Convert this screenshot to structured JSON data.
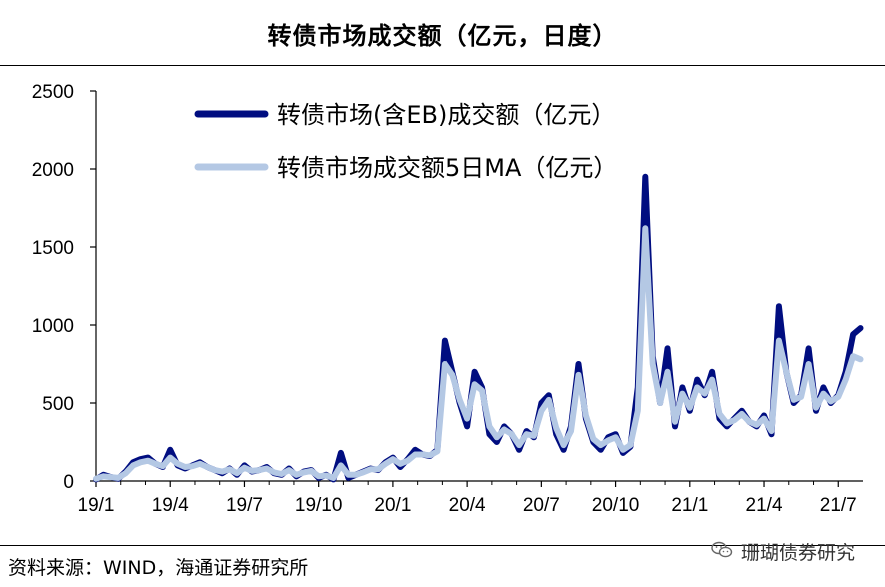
{
  "chart_data": {
    "type": "line",
    "title": "转债市场成交额（亿元，日度）",
    "ylim": [
      0,
      2500
    ],
    "yticks": [
      0,
      500,
      1000,
      1500,
      2000,
      2500
    ],
    "xticks": [
      "19/1",
      "19/4",
      "19/7",
      "19/10",
      "20/1",
      "20/4",
      "20/7",
      "20/10",
      "21/1",
      "21/4",
      "21/7"
    ],
    "legend_position": "top-center",
    "series": [
      {
        "name": "转债市场(含EB)成交额（亿元）",
        "color": "#000d80",
        "x": [
          0,
          0.3,
          0.6,
          0.9,
          1.2,
          1.5,
          1.8,
          2.1,
          2.4,
          2.7,
          3.0,
          3.3,
          3.6,
          3.9,
          4.2,
          4.5,
          4.8,
          5.1,
          5.4,
          5.7,
          6.0,
          6.3,
          6.6,
          6.9,
          7.2,
          7.5,
          7.8,
          8.1,
          8.4,
          8.7,
          9.0,
          9.3,
          9.6,
          9.9,
          10.2,
          10.5,
          10.8,
          11.1,
          11.4,
          11.7,
          12.0,
          12.3,
          12.6,
          12.9,
          13.2,
          13.5,
          13.8,
          14.1,
          14.4,
          14.7,
          15.0,
          15.3,
          15.6,
          15.9,
          16.2,
          16.5,
          16.8,
          17.1,
          17.4,
          17.7,
          18.0,
          18.3,
          18.6,
          18.9,
          19.2,
          19.5,
          19.8,
          20.1,
          20.4,
          20.7,
          21.0,
          21.3,
          21.6,
          21.9,
          22.2,
          22.5,
          22.8,
          23.1,
          23.4,
          23.7,
          24.0,
          24.3,
          24.6,
          24.9,
          25.2,
          25.5,
          25.8,
          26.1,
          26.4,
          26.7,
          27.0,
          27.3,
          27.6,
          27.9,
          28.2,
          28.5,
          28.8,
          29.1,
          29.4,
          29.7,
          30.0,
          30.3,
          30.6,
          30.9
        ],
        "values": [
          10,
          40,
          25,
          15,
          60,
          120,
          140,
          150,
          110,
          90,
          200,
          100,
          80,
          100,
          120,
          90,
          70,
          50,
          80,
          40,
          100,
          60,
          70,
          90,
          50,
          40,
          80,
          30,
          60,
          70,
          20,
          40,
          10,
          180,
          20,
          40,
          60,
          80,
          70,
          120,
          150,
          90,
          140,
          200,
          170,
          160,
          200,
          900,
          700,
          500,
          350,
          700,
          600,
          300,
          250,
          350,
          300,
          200,
          320,
          280,
          500,
          550,
          300,
          200,
          350,
          750,
          400,
          250,
          200,
          280,
          300,
          180,
          220,
          600,
          1950,
          800,
          500,
          850,
          350,
          600,
          450,
          650,
          550,
          700,
          400,
          350,
          400,
          450,
          380,
          350,
          420,
          300,
          1120,
          700,
          500,
          550,
          850,
          450,
          600,
          500,
          550,
          700,
          940,
          980
        ],
        "x_unit": "months since 19/1"
      },
      {
        "name": "转债市场成交额5日MA（亿元）",
        "color": "#b4c8e4",
        "x": [
          0,
          0.3,
          0.6,
          0.9,
          1.2,
          1.5,
          1.8,
          2.1,
          2.4,
          2.7,
          3.0,
          3.3,
          3.6,
          3.9,
          4.2,
          4.5,
          4.8,
          5.1,
          5.4,
          5.7,
          6.0,
          6.3,
          6.6,
          6.9,
          7.2,
          7.5,
          7.8,
          8.1,
          8.4,
          8.7,
          9.0,
          9.3,
          9.6,
          9.9,
          10.2,
          10.5,
          10.8,
          11.1,
          11.4,
          11.7,
          12.0,
          12.3,
          12.6,
          12.9,
          13.2,
          13.5,
          13.8,
          14.1,
          14.4,
          14.7,
          15.0,
          15.3,
          15.6,
          15.9,
          16.2,
          16.5,
          16.8,
          17.1,
          17.4,
          17.7,
          18.0,
          18.3,
          18.6,
          18.9,
          19.2,
          19.5,
          19.8,
          20.1,
          20.4,
          20.7,
          21.0,
          21.3,
          21.6,
          21.9,
          22.2,
          22.5,
          22.8,
          23.1,
          23.4,
          23.7,
          24.0,
          24.3,
          24.6,
          24.9,
          25.2,
          25.5,
          25.8,
          26.1,
          26.4,
          26.7,
          27.0,
          27.3,
          27.6,
          27.9,
          28.2,
          28.5,
          28.8,
          29.1,
          29.4,
          29.7,
          30.0,
          30.3,
          30.6,
          30.9
        ],
        "values": [
          15,
          30,
          25,
          20,
          50,
          100,
          120,
          130,
          110,
          95,
          150,
          110,
          90,
          95,
          110,
          90,
          70,
          60,
          75,
          50,
          85,
          65,
          70,
          80,
          55,
          45,
          70,
          40,
          55,
          65,
          30,
          35,
          20,
          100,
          40,
          40,
          55,
          75,
          75,
          110,
          140,
          110,
          130,
          170,
          170,
          165,
          190,
          750,
          680,
          520,
          400,
          620,
          580,
          350,
          280,
          330,
          300,
          230,
          300,
          290,
          450,
          520,
          340,
          230,
          320,
          680,
          420,
          270,
          230,
          260,
          280,
          200,
          230,
          450,
          1620,
          750,
          500,
          700,
          380,
          560,
          470,
          600,
          560,
          650,
          430,
          370,
          390,
          430,
          380,
          360,
          400,
          320,
          900,
          700,
          520,
          540,
          750,
          470,
          560,
          510,
          540,
          650,
          800,
          780
        ],
        "x_unit": "months since 19/1"
      }
    ]
  },
  "footer": {
    "source": "资料来源：WIND，海通证券研究所",
    "watermark": "珊瑚债券研究",
    "watermark_icon": "wechat-icon"
  }
}
